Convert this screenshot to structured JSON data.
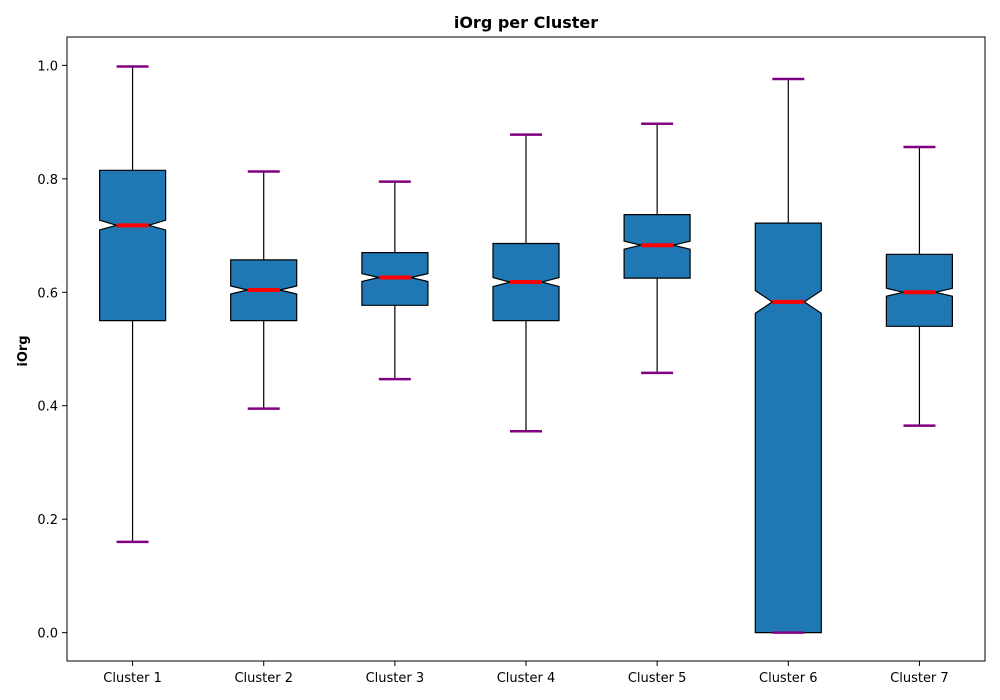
{
  "chart_data": {
    "type": "boxplot",
    "title": "iOrg per Cluster",
    "xlabel": "",
    "ylabel": "iOrg",
    "ylim": [
      -0.05,
      1.05
    ],
    "yticks": [
      "0.0",
      "0.2",
      "0.4",
      "0.6",
      "0.8",
      "1.0"
    ],
    "notched": true,
    "grid": false,
    "categories": [
      "Cluster 1",
      "Cluster 2",
      "Cluster 3",
      "Cluster 4",
      "Cluster 5",
      "Cluster 6",
      "Cluster 7"
    ],
    "boxes": [
      {
        "min": 0.16,
        "q1": 0.55,
        "median": 0.718,
        "q3": 0.815,
        "max": 0.998,
        "notch_low": 0.71,
        "notch_high": 0.727
      },
      {
        "min": 0.395,
        "q1": 0.55,
        "median": 0.604,
        "q3": 0.657,
        "max": 0.813,
        "notch_low": 0.597,
        "notch_high": 0.611
      },
      {
        "min": 0.447,
        "q1": 0.577,
        "median": 0.626,
        "q3": 0.67,
        "max": 0.795,
        "notch_low": 0.619,
        "notch_high": 0.633
      },
      {
        "min": 0.355,
        "q1": 0.55,
        "median": 0.618,
        "q3": 0.686,
        "max": 0.878,
        "notch_low": 0.61,
        "notch_high": 0.626
      },
      {
        "min": 0.458,
        "q1": 0.625,
        "median": 0.683,
        "q3": 0.737,
        "max": 0.897,
        "notch_low": 0.676,
        "notch_high": 0.69
      },
      {
        "min": 0.0,
        "q1": 0.0,
        "median": 0.583,
        "q3": 0.722,
        "max": 0.976,
        "notch_low": 0.563,
        "notch_high": 0.603
      },
      {
        "min": 0.365,
        "q1": 0.54,
        "median": 0.6,
        "q3": 0.667,
        "max": 0.856,
        "notch_low": 0.593,
        "notch_high": 0.607
      }
    ],
    "colors": {
      "box_fill": "#1f77b4",
      "box_edge": "#000000",
      "median": "#ff0000",
      "caps": "#800080",
      "whiskers": "#000000"
    }
  }
}
